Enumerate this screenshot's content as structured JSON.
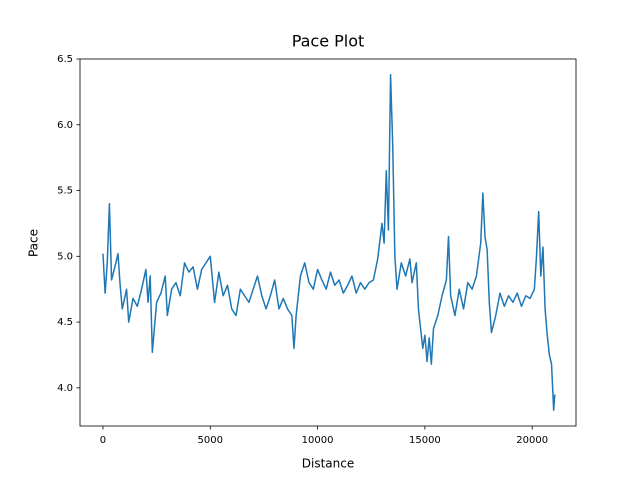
{
  "chart_data": {
    "type": "line",
    "title": "Pace Plot",
    "x_label": "Distance",
    "y_label": "Pace",
    "x": [
      0,
      100,
      200,
      300,
      400,
      600,
      700,
      800,
      900,
      1100,
      1200,
      1400,
      1600,
      1800,
      2000,
      2100,
      2200,
      2300,
      2500,
      2700,
      2900,
      3000,
      3200,
      3400,
      3600,
      3800,
      4000,
      4200,
      4400,
      4600,
      4800,
      5000,
      5200,
      5400,
      5600,
      5800,
      6000,
      6200,
      6400,
      6600,
      6800,
      7000,
      7200,
      7400,
      7600,
      7800,
      8000,
      8200,
      8400,
      8600,
      8800,
      8900,
      9000,
      9200,
      9400,
      9600,
      9800,
      10000,
      10200,
      10400,
      10600,
      10800,
      11000,
      11200,
      11400,
      11600,
      11800,
      12000,
      12200,
      12400,
      12600,
      12800,
      13000,
      13100,
      13200,
      13300,
      13400,
      13500,
      13600,
      13700,
      13900,
      14100,
      14300,
      14400,
      14600,
      14700,
      14800,
      14900,
      15000,
      15100,
      15200,
      15300,
      15400,
      15600,
      15800,
      16000,
      16100,
      16200,
      16400,
      16600,
      16800,
      17000,
      17200,
      17400,
      17600,
      17700,
      17800,
      17900,
      18000,
      18100,
      18300,
      18500,
      18700,
      18900,
      19100,
      19300,
      19500,
      19700,
      19900,
      20100,
      20200,
      20300,
      20400,
      20500,
      20600,
      20700,
      20800,
      20900,
      21000,
      21050
    ],
    "series": [
      {
        "name": "Pace",
        "color": "#1f77b4",
        "values": [
          5.02,
          4.72,
          4.95,
          5.4,
          4.82,
          4.95,
          5.02,
          4.78,
          4.6,
          4.75,
          4.5,
          4.68,
          4.62,
          4.75,
          4.9,
          4.65,
          4.85,
          4.27,
          4.65,
          4.72,
          4.85,
          4.55,
          4.75,
          4.8,
          4.7,
          4.95,
          4.88,
          4.92,
          4.75,
          4.9,
          4.95,
          5.0,
          4.65,
          4.88,
          4.7,
          4.78,
          4.6,
          4.55,
          4.75,
          4.7,
          4.65,
          4.75,
          4.85,
          4.7,
          4.6,
          4.7,
          4.82,
          4.6,
          4.68,
          4.6,
          4.55,
          4.3,
          4.55,
          4.85,
          4.95,
          4.8,
          4.75,
          4.9,
          4.82,
          4.75,
          4.88,
          4.78,
          4.82,
          4.72,
          4.78,
          4.85,
          4.72,
          4.8,
          4.75,
          4.8,
          4.82,
          4.98,
          5.25,
          5.1,
          5.65,
          5.2,
          6.38,
          5.85,
          5.0,
          4.75,
          4.95,
          4.85,
          4.98,
          4.8,
          4.95,
          4.6,
          4.45,
          4.3,
          4.4,
          4.2,
          4.38,
          4.18,
          4.45,
          4.55,
          4.7,
          4.82,
          5.15,
          4.7,
          4.55,
          4.75,
          4.6,
          4.8,
          4.75,
          4.85,
          5.1,
          5.48,
          5.15,
          5.05,
          4.65,
          4.42,
          4.55,
          4.72,
          4.62,
          4.7,
          4.65,
          4.72,
          4.62,
          4.7,
          4.68,
          4.75,
          5.0,
          5.34,
          4.85,
          5.07,
          4.6,
          4.4,
          4.25,
          4.18,
          3.83,
          3.95
        ]
      }
    ],
    "xlim": [
      -1070,
      22040
    ],
    "ylim": [
      3.71,
      6.5
    ],
    "xticks": [
      0,
      5000,
      10000,
      15000,
      20000
    ],
    "yticks": [
      {
        "value": 4.0,
        "label": "4.0"
      },
      4.5,
      {
        "value": 5.0,
        "label": "5.0"
      },
      5.5,
      {
        "value": 6.0,
        "label": "6.0"
      },
      6.5
    ],
    "grid": false
  }
}
